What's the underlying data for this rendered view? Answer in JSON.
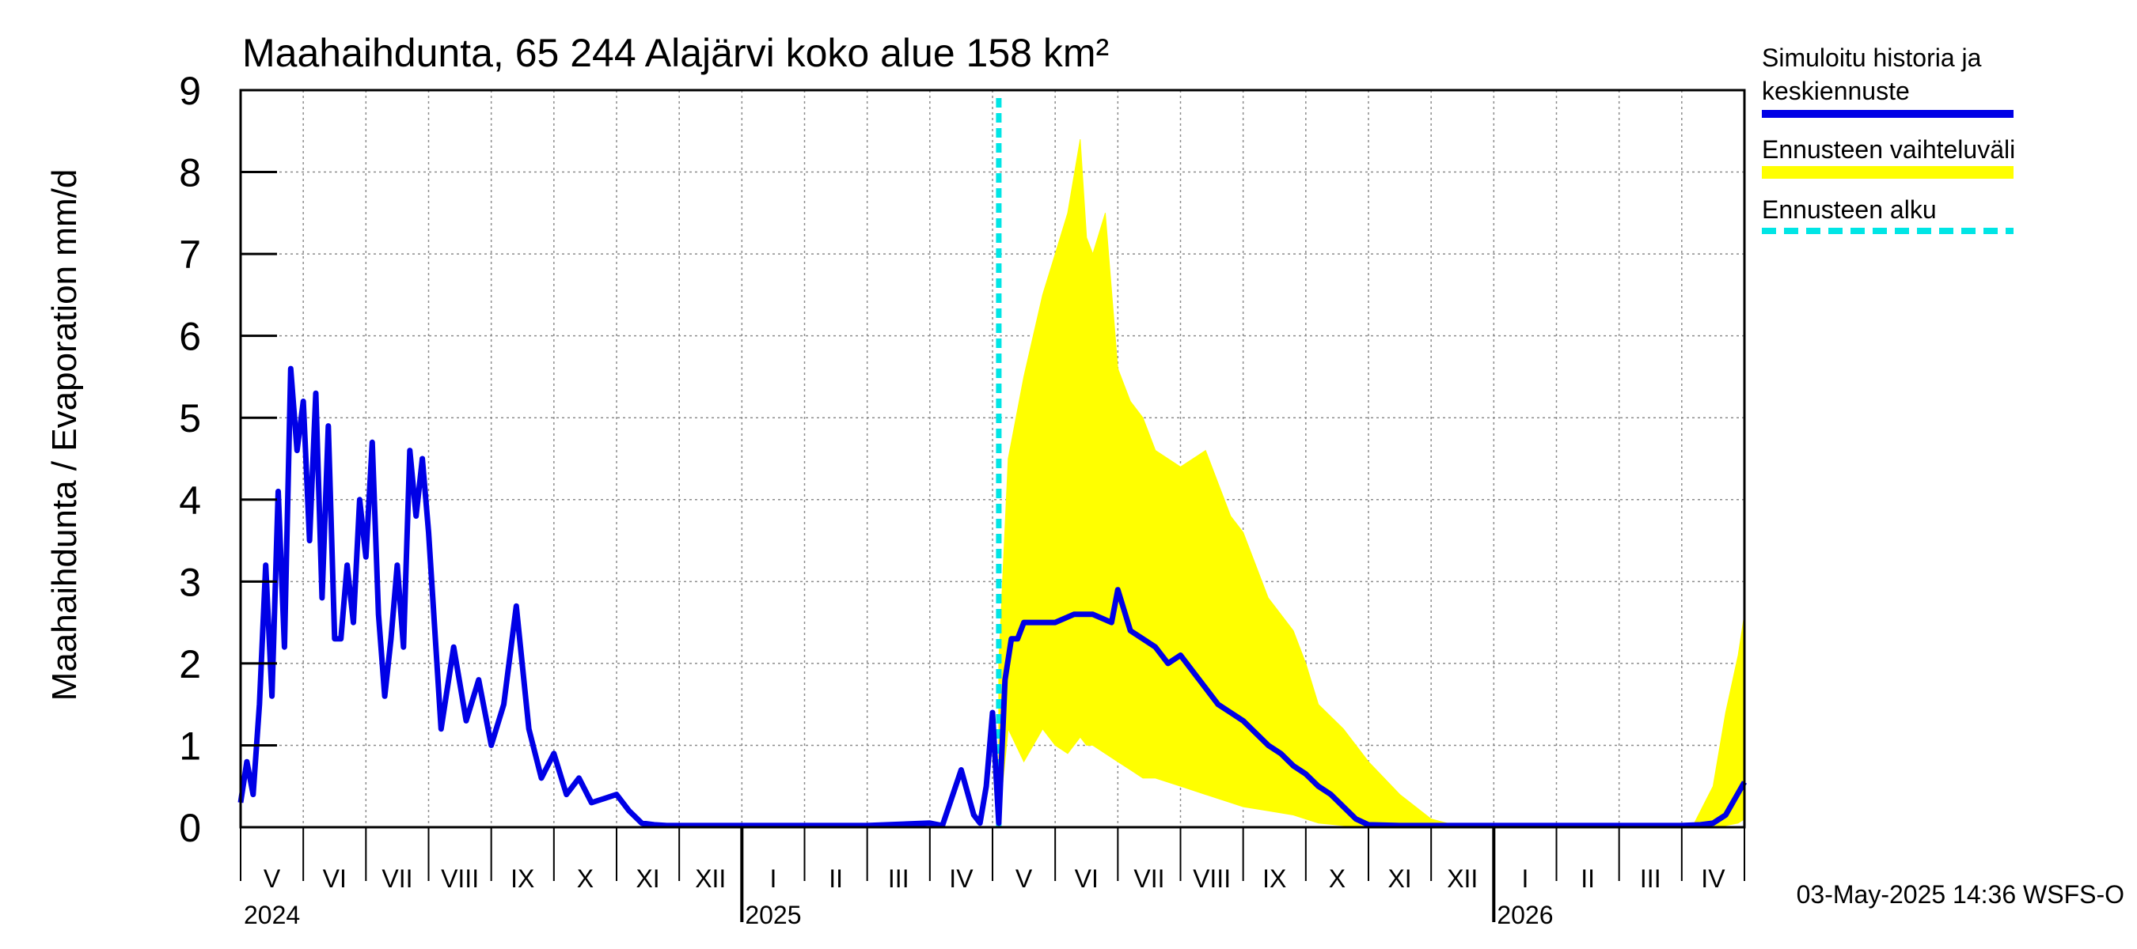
{
  "chart_data": {
    "type": "line",
    "title": "Maahaihdunta, 65 244 Alajärvi koko alue 158 km²",
    "ylabel": "Maahaihdunta / Evaporation   mm/d",
    "ylim": [
      0,
      9
    ],
    "yticks": [
      "0",
      "1",
      "2",
      "3",
      "4",
      "5",
      "6",
      "7",
      "8",
      "9"
    ],
    "months": [
      "V",
      "VI",
      "VII",
      "VIII",
      "IX",
      "X",
      "XI",
      "XII",
      "I",
      "II",
      "III",
      "IV",
      "V",
      "VI",
      "VII",
      "VIII",
      "IX",
      "X",
      "XI",
      "XII",
      "I",
      "II",
      "III",
      "IV"
    ],
    "years": [
      {
        "label": "2024",
        "month_index": 0
      },
      {
        "label": "2025",
        "month_index": 8
      },
      {
        "label": "2026",
        "month_index": 20
      }
    ],
    "x_range_months": [
      0,
      24
    ],
    "grid": true,
    "legend_position": "right",
    "legend": {
      "history_line1": "Simuloitu historia ja",
      "history_line2": "keskiennuste",
      "range": "Ennusteen vaihteluväli",
      "start": "Ennusteen alku"
    },
    "colors": {
      "history": "#0000e6",
      "range": "#ffff00",
      "start": "#00e5e5"
    },
    "forecast_start": 12.1,
    "series": [
      {
        "key": "history",
        "legend": "Simuloitu historia ja keskiennuste",
        "x": [
          0,
          0.1,
          0.2,
          0.3,
          0.4,
          0.5,
          0.6,
          0.7,
          0.8,
          0.9,
          1.0,
          1.1,
          1.2,
          1.3,
          1.4,
          1.5,
          1.6,
          1.7,
          1.8,
          1.9,
          2.0,
          2.1,
          2.2,
          2.3,
          2.4,
          2.5,
          2.6,
          2.7,
          2.8,
          2.9,
          3.0,
          3.2,
          3.4,
          3.6,
          3.8,
          4.0,
          4.2,
          4.4,
          4.6,
          4.8,
          5.0,
          5.2,
          5.4,
          5.6,
          5.8,
          6.0,
          6.2,
          6.4,
          6.6,
          6.8,
          7.0,
          7.5,
          8.0,
          9.0,
          10.0,
          11.0,
          11.2,
          11.5,
          11.7,
          11.8,
          11.9,
          12.0,
          12.1,
          12.2,
          12.3,
          12.4,
          12.5,
          12.7,
          13.0,
          13.3,
          13.6,
          13.9,
          14.0,
          14.2,
          14.4,
          14.6,
          14.8,
          15.0,
          15.2,
          15.4,
          15.6,
          15.8,
          16.0,
          16.2,
          16.4,
          16.6,
          16.8,
          17.0,
          17.2,
          17.4,
          17.6,
          17.8,
          18.0,
          18.5,
          19.0,
          20.0,
          21.0,
          22.0,
          23.0,
          23.3,
          23.5,
          23.7,
          23.85,
          24.0
        ],
        "y": [
          0.3,
          0.8,
          0.4,
          1.5,
          3.2,
          1.6,
          4.1,
          2.2,
          5.6,
          4.6,
          5.2,
          3.5,
          5.3,
          2.8,
          4.9,
          2.3,
          2.3,
          3.2,
          2.5,
          4.0,
          3.3,
          4.7,
          2.6,
          1.6,
          2.3,
          3.2,
          2.2,
          4.6,
          3.8,
          4.5,
          3.6,
          1.2,
          2.2,
          1.3,
          1.8,
          1.0,
          1.5,
          2.7,
          1.2,
          0.6,
          0.9,
          0.4,
          0.6,
          0.3,
          0.35,
          0.4,
          0.2,
          0.05,
          0.03,
          0.02,
          0.02,
          0.02,
          0.02,
          0.02,
          0.02,
          0.05,
          0.02,
          0.7,
          0.15,
          0.05,
          0.5,
          1.4,
          0.05,
          1.8,
          2.3,
          2.3,
          2.5,
          2.5,
          2.5,
          2.6,
          2.6,
          2.5,
          2.9,
          2.4,
          2.3,
          2.2,
          2.0,
          2.1,
          1.9,
          1.7,
          1.5,
          1.4,
          1.3,
          1.15,
          1.0,
          0.9,
          0.75,
          0.65,
          0.5,
          0.4,
          0.25,
          0.1,
          0.03,
          0.02,
          0.02,
          0.02,
          0.02,
          0.02,
          0.02,
          0.03,
          0.05,
          0.15,
          0.35,
          0.55
        ]
      },
      {
        "key": "range",
        "legend": "Ennusteen vaihteluväli",
        "x": [
          12.1,
          12.25,
          12.5,
          12.8,
          13.0,
          13.2,
          13.4,
          13.5,
          13.6,
          13.8,
          14.0,
          14.2,
          14.4,
          14.6,
          15.0,
          15.4,
          15.6,
          15.8,
          16.0,
          16.4,
          16.8,
          17.0,
          17.2,
          17.6,
          18.0,
          18.5,
          19.0,
          19.5,
          20.0,
          21.0,
          22.0,
          22.8,
          23.2,
          23.5,
          23.7,
          23.9,
          24.0
        ],
        "upper": [
          2.0,
          4.5,
          5.5,
          6.5,
          7.0,
          7.5,
          8.4,
          7.2,
          7.0,
          7.5,
          5.6,
          5.2,
          5.0,
          4.6,
          4.4,
          4.6,
          4.2,
          3.8,
          3.6,
          2.8,
          2.4,
          2.0,
          1.5,
          1.2,
          0.8,
          0.4,
          0.1,
          0.0,
          0.0,
          0.0,
          0.0,
          0.0,
          0.05,
          0.5,
          1.4,
          2.1,
          2.6
        ],
        "lower": [
          0.05,
          1.2,
          0.8,
          1.2,
          1.0,
          0.9,
          1.1,
          1.0,
          1.0,
          0.9,
          0.8,
          0.7,
          0.6,
          0.6,
          0.5,
          0.4,
          0.35,
          0.3,
          0.25,
          0.2,
          0.15,
          0.1,
          0.05,
          0.02,
          0.0,
          0.0,
          0.0,
          0.0,
          0.0,
          0.0,
          0.0,
          0.0,
          0.0,
          0.0,
          0.02,
          0.05,
          0.1
        ]
      }
    ],
    "footer": "03-May-2025 14:36 WSFS-O"
  }
}
